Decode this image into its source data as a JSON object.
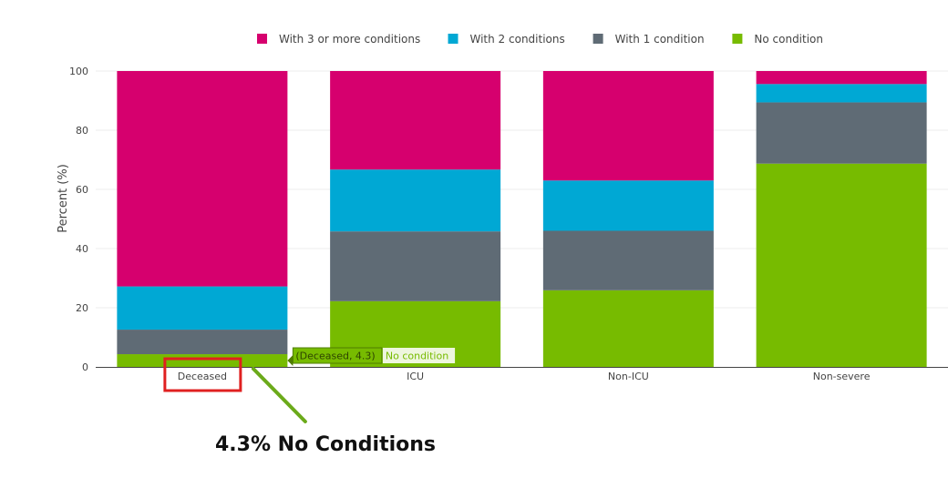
{
  "chart_data": {
    "type": "bar",
    "stacked": true,
    "categories": [
      "Deceased",
      "ICU",
      "Non-ICU",
      "Non-severe"
    ],
    "series": [
      {
        "name": "No condition",
        "color": "#77BB00",
        "values": [
          4.3,
          22.2,
          25.9,
          68.7
        ]
      },
      {
        "name": "With 1 condition",
        "color": "#5F6B75",
        "values": [
          8.3,
          23.6,
          20.1,
          20.7
        ]
      },
      {
        "name": "With 2 conditions",
        "color": "#00A8D4",
        "values": [
          14.6,
          20.9,
          17.0,
          6.2
        ]
      },
      {
        "name": "With 3 or more conditions",
        "color": "#D6006E",
        "values": [
          72.8,
          33.3,
          37.0,
          4.4
        ]
      }
    ],
    "legend_order": [
      "With 3 or more conditions",
      "With 2 conditions",
      "With 1 condition",
      "No condition"
    ],
    "legend_position": "top",
    "ylabel": "Percent (%)",
    "xlabel": "",
    "ylim": [
      0,
      100
    ],
    "yticks": [
      0,
      20,
      40,
      60,
      80,
      100
    ],
    "grid": true
  },
  "tooltip": {
    "coords": "(Deceased, 4.3)",
    "series": "No condition"
  },
  "annotation": {
    "callout_text": "4.3% No Conditions",
    "highlight_color": "#E02020",
    "arrow_color": "#6BAA1A"
  }
}
